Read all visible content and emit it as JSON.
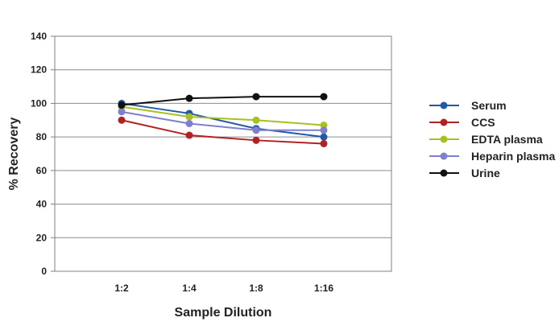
{
  "chart_data": {
    "type": "line",
    "title": "",
    "xlabel": "Sample Dilution",
    "ylabel": "% Recovery",
    "categories": [
      "1:2",
      "1:4",
      "1:8",
      "1:16"
    ],
    "ylim": [
      0,
      140
    ],
    "yticks": [
      0,
      20,
      40,
      60,
      80,
      100,
      120,
      140
    ],
    "grid": true,
    "legend_position": "right",
    "series": [
      {
        "name": "Serum",
        "color": "#1f5aa6",
        "values": [
          100,
          94,
          85,
          80
        ]
      },
      {
        "name": "CCS",
        "color": "#b22222",
        "values": [
          90,
          81,
          78,
          76
        ]
      },
      {
        "name": "EDTA plasma",
        "color": "#a8c020",
        "values": [
          98,
          92,
          90,
          87
        ]
      },
      {
        "name": "Heparin plasma",
        "color": "#7f7fd0",
        "values": [
          95,
          88,
          84,
          84
        ]
      },
      {
        "name": "Urine",
        "color": "#111111",
        "values": [
          99,
          103,
          104,
          104
        ]
      }
    ]
  }
}
